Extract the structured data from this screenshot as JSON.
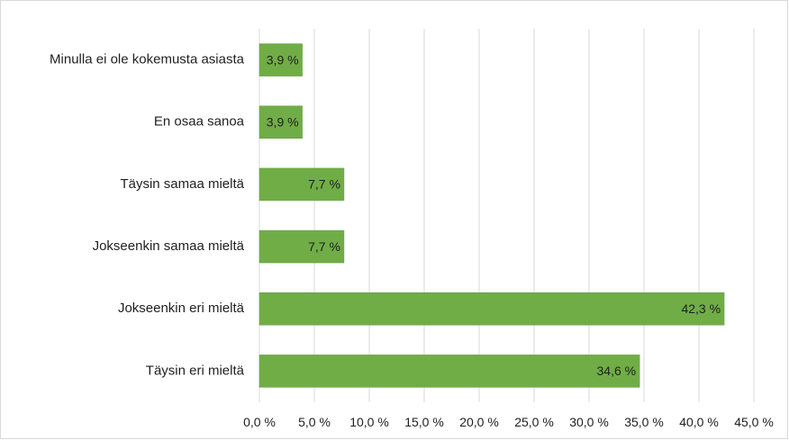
{
  "chart_data": {
    "type": "bar",
    "orientation": "horizontal",
    "title": "",
    "xlabel": "",
    "ylabel": "",
    "categories": [
      "Minulla ei ole kokemusta asiasta",
      "En osaa sanoa",
      "Täysin samaa mieltä",
      "Jokseenkin samaa mieltä",
      "Jokseenkin eri mieltä",
      "Täysin eri mieltä"
    ],
    "values": [
      3.9,
      3.9,
      7.7,
      7.7,
      42.3,
      34.6
    ],
    "data_labels": [
      "3,9 %",
      "3,9 %",
      "7,7 %",
      "7,7 %",
      "42,3 %",
      "34,6 %"
    ],
    "xlim": [
      0,
      45
    ],
    "x_ticks": [
      0,
      5,
      10,
      15,
      20,
      25,
      30,
      35,
      40,
      45
    ],
    "x_tick_labels": [
      "0,0 %",
      "5,0 %",
      "10,0 %",
      "15,0 %",
      "20,0 %",
      "25,0 %",
      "30,0 %",
      "35,0 %",
      "40,0 %",
      "45,0 %"
    ],
    "grid": "vertical",
    "legend": "none",
    "bar_color": "#70ad47"
  }
}
